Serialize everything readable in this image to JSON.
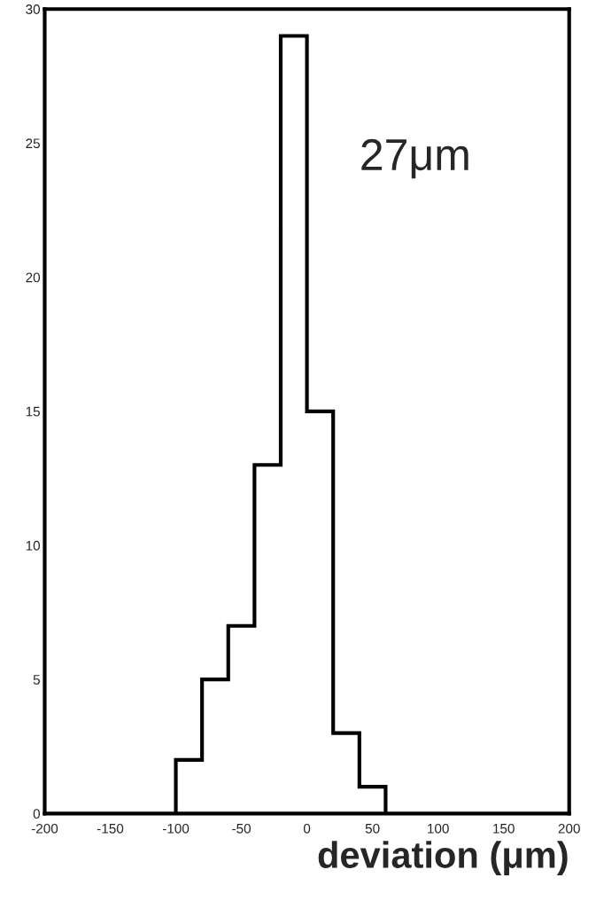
{
  "chart_data": {
    "type": "histogram",
    "xlabel": "deviation (μm)",
    "bins": [
      -100,
      -80,
      -60,
      -40,
      -20,
      0,
      20,
      40,
      60
    ],
    "values": [
      2,
      5,
      7,
      13,
      29,
      15,
      3,
      1
    ],
    "color": "#000000",
    "xlim": [
      -200,
      200
    ],
    "xticks": [
      -200,
      -150,
      -100,
      -50,
      0,
      50,
      100,
      150,
      200
    ],
    "ylim": [
      0,
      30
    ],
    "yticks": [
      0,
      5,
      10,
      15,
      20,
      25,
      30
    ],
    "grid": false,
    "legend": false,
    "annotations": [
      "27μm"
    ]
  }
}
